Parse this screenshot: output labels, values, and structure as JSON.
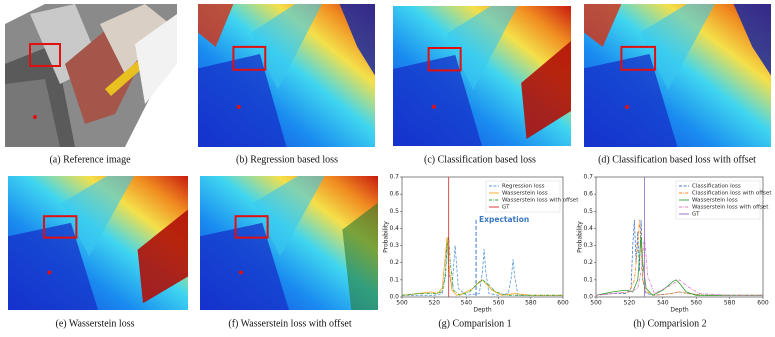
{
  "panels": [
    {
      "caption": "(a) Reference image"
    },
    {
      "caption": "(b) Regression based loss"
    },
    {
      "caption": "(c) Classification based loss"
    },
    {
      "caption": "(d) Classification based loss with offset"
    },
    {
      "caption": "(e) Wasserstein loss"
    },
    {
      "caption": "(f) Wasserstein loss with offset"
    },
    {
      "caption": "(g) Comparision 1"
    },
    {
      "caption": "(h) Comparision 2"
    }
  ],
  "chart_data": [
    {
      "type": "line",
      "xlabel": "Depth",
      "ylabel": "Probability",
      "xlim": [
        500,
        600
      ],
      "xticks": [
        500,
        520,
        540,
        560,
        580,
        600
      ],
      "ylim": [
        0,
        0.7
      ],
      "yticks": [
        {
          "value": 0,
          "label": "0.0"
        },
        0.1,
        0.2,
        0.3,
        0.4,
        0.5,
        0.6,
        0.7
      ],
      "legend": "upper right",
      "series": [
        {
          "name": "Regression loss",
          "color": "#5b9bd5",
          "style": "dashed",
          "x": [
            500,
            510,
            520,
            525,
            527,
            528,
            529,
            531,
            533,
            535,
            540,
            548,
            550,
            551,
            552,
            554,
            560,
            566,
            568,
            569,
            570,
            572,
            580,
            600
          ],
          "values": [
            0.01,
            0.01,
            0.01,
            0.02,
            0.15,
            0.35,
            0.15,
            0.05,
            0.3,
            0.05,
            0.01,
            0.02,
            0.15,
            0.28,
            0.15,
            0.02,
            0.01,
            0.02,
            0.12,
            0.22,
            0.12,
            0.01,
            0.01,
            0.01
          ]
        },
        {
          "name": "Wasserstein loss",
          "color": "#f5a623",
          "style": "solid",
          "x": [
            500,
            510,
            518,
            522,
            525,
            527,
            528,
            529,
            531,
            534,
            538,
            544,
            548,
            550,
            552,
            556,
            562,
            570,
            580,
            600
          ],
          "values": [
            0.01,
            0.02,
            0.03,
            0.02,
            0.05,
            0.25,
            0.35,
            0.2,
            0.04,
            0.01,
            0.02,
            0.05,
            0.09,
            0.1,
            0.08,
            0.04,
            0.01,
            0.02,
            0.01,
            0.01
          ]
        },
        {
          "name": "Wasserstein loss with offset",
          "color": "#2ca02c",
          "style": "dashdot",
          "x": [
            500,
            510,
            520,
            525,
            527,
            528,
            529,
            530,
            532,
            536,
            542,
            546,
            550,
            554,
            558,
            565,
            580,
            600
          ],
          "values": [
            0.01,
            0.02,
            0.02,
            0.03,
            0.12,
            0.3,
            0.35,
            0.2,
            0.04,
            0.01,
            0.03,
            0.07,
            0.1,
            0.07,
            0.03,
            0.01,
            0.01,
            0.01
          ]
        },
        {
          "name": "GT",
          "color": "#d62728",
          "style": "solid",
          "x": [
            529,
            529
          ],
          "values": [
            0,
            0.7
          ]
        }
      ],
      "annotations": [
        {
          "text": "Expectation",
          "x": 546,
          "y": 0.45,
          "color": "#3a78c2"
        }
      ]
    },
    {
      "type": "line",
      "xlabel": "Depth",
      "ylabel": "Probability",
      "xlim": [
        500,
        600
      ],
      "xticks": [
        500,
        520,
        540,
        560,
        580,
        600
      ],
      "ylim": [
        0,
        0.7
      ],
      "yticks": [
        {
          "value": 0,
          "label": "0.0"
        },
        0.1,
        0.2,
        0.3,
        0.4,
        0.5,
        0.6,
        0.7
      ],
      "legend": "upper right",
      "series": [
        {
          "name": "Classification loss",
          "color": "#4e79c7",
          "style": "dashed",
          "x": [
            500,
            510,
            518,
            521,
            522,
            523,
            524,
            525,
            526,
            527,
            528,
            530,
            535,
            545,
            550,
            555,
            565,
            580,
            600
          ],
          "values": [
            0.01,
            0.02,
            0.02,
            0.05,
            0.3,
            0.45,
            0.2,
            0.38,
            0.15,
            0.45,
            0.1,
            0.02,
            0.01,
            0.02,
            0.03,
            0.02,
            0.01,
            0.01,
            0.01
          ]
        },
        {
          "name": "Classification loss with offset",
          "color": "#ff7f0e",
          "style": "dashdot",
          "x": [
            500,
            510,
            520,
            523,
            525,
            526,
            527,
            528,
            530,
            535,
            545,
            550,
            555,
            565,
            580,
            600
          ],
          "values": [
            0.01,
            0.02,
            0.03,
            0.1,
            0.3,
            0.45,
            0.3,
            0.1,
            0.03,
            0.01,
            0.02,
            0.03,
            0.02,
            0.01,
            0.01,
            0.01
          ]
        },
        {
          "name": "Wasserstein loss",
          "color": "#2ca02c",
          "style": "solid",
          "x": [
            500,
            510,
            518,
            522,
            525,
            527,
            528,
            530,
            534,
            540,
            546,
            548,
            550,
            554,
            560,
            570,
            600
          ],
          "values": [
            0.01,
            0.03,
            0.04,
            0.03,
            0.1,
            0.35,
            0.2,
            0.05,
            0.01,
            0.04,
            0.09,
            0.1,
            0.08,
            0.03,
            0.01,
            0.01,
            0.01
          ]
        },
        {
          "name": "Wasserstein loss with offset",
          "color": "#e377c2",
          "style": "dashdot",
          "x": [
            500,
            510,
            520,
            525,
            527,
            529,
            531,
            535,
            545,
            550,
            555,
            562,
            580,
            600
          ],
          "values": [
            0.01,
            0.02,
            0.03,
            0.05,
            0.15,
            0.35,
            0.12,
            0.02,
            0.07,
            0.1,
            0.06,
            0.02,
            0.01,
            0.01
          ]
        },
        {
          "name": "GT",
          "color": "#9467bd",
          "style": "solid",
          "x": [
            529,
            529
          ],
          "values": [
            0,
            0.7
          ]
        }
      ],
      "annotations": []
    }
  ]
}
